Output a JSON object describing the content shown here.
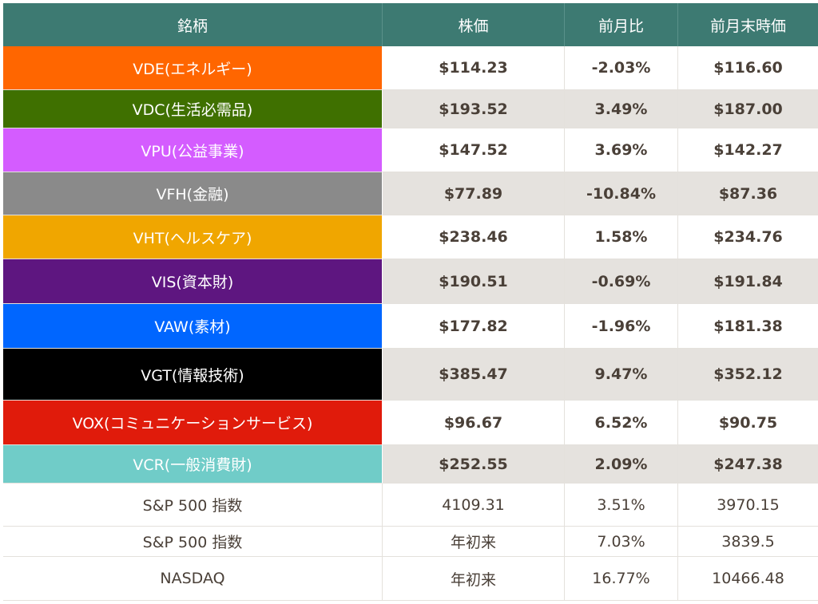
{
  "header": {
    "col_name": "銘柄",
    "col_price": "株価",
    "col_change": "前月比",
    "col_prev": "前月末時価",
    "bg": "#3d7a72"
  },
  "funds": [
    {
      "name": "VDE(エネルギー)",
      "price": "$114.23",
      "change": "-2.03%",
      "prev": "$116.60",
      "color": "#ff6600"
    },
    {
      "name": "VDC(生活必需品)",
      "price": "$193.52",
      "change": "3.49%",
      "prev": "$187.00",
      "color": "#3f7000"
    },
    {
      "name": "VPU(公益事業)",
      "price": "$147.52",
      "change": "3.69%",
      "prev": "$142.27",
      "color": "#d45cff"
    },
    {
      "name": "VFH(金融)",
      "price": "$77.89",
      "change": "-10.84%",
      "prev": "$87.36",
      "color": "#8a8a8a"
    },
    {
      "name": "VHT(ヘルスケア)",
      "price": "$238.46",
      "change": "1.58%",
      "prev": "$234.76",
      "color": "#f0a600"
    },
    {
      "name": "VIS(資本財)",
      "price": "$190.51",
      "change": "-0.69%",
      "prev": "$191.84",
      "color": "#5e1680"
    },
    {
      "name": "VAW(素材)",
      "price": "$177.82",
      "change": "-1.96%",
      "prev": "$181.38",
      "color": "#0066ff"
    },
    {
      "name": "VGT(情報技術)",
      "price": "$385.47",
      "change": "9.47%",
      "prev": "$352.12",
      "color": "#000000"
    },
    {
      "name": "VOX(コミュニケーションサービス)",
      "price": "$96.67",
      "change": "6.52%",
      "prev": "$90.75",
      "color": "#e01b0b"
    },
    {
      "name": "VCR(一般消費財)",
      "price": "$252.55",
      "change": "2.09%",
      "prev": "$247.38",
      "color": "#70ccc8"
    }
  ],
  "indexes": [
    {
      "name": "S&P 500 指数",
      "price": "4109.31",
      "change": "3.51%",
      "prev": "3970.15"
    },
    {
      "name": "S&P 500 指数",
      "price": "年初来",
      "change": "7.03%",
      "prev": "3839.5"
    },
    {
      "name": "NASDAQ",
      "price": "年初来",
      "change": "16.77%",
      "prev": "10466.48"
    }
  ]
}
